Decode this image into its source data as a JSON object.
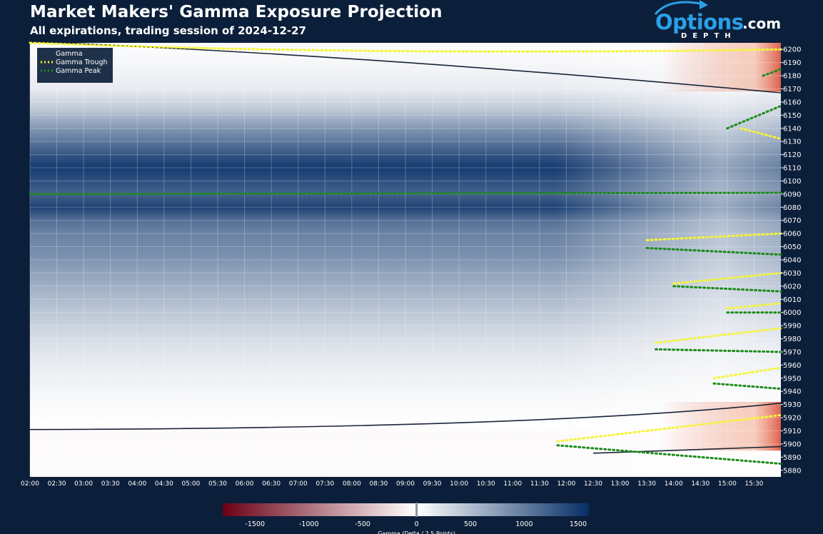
{
  "header": {
    "title": "Market Makers' Gamma Exposure Projection",
    "subtitle": "All expirations, trading session of 2024-12-27"
  },
  "logo": {
    "main": "Options",
    "suffix": ".com",
    "tagline": "DEPTH",
    "icon": "arrow-icon"
  },
  "chart_data": {
    "type": "heatmap",
    "title": "Market Makers' Gamma Exposure Projection",
    "subtitle": "All expirations, trading session of 2024-12-27",
    "xlabel": "",
    "ylabel": "",
    "x_ticks": [
      "02:00",
      "02:30",
      "03:00",
      "03:30",
      "04:00",
      "04:30",
      "05:00",
      "05:30",
      "06:00",
      "06:30",
      "07:00",
      "07:30",
      "08:00",
      "08:30",
      "09:00",
      "09:30",
      "10:00",
      "10:30",
      "11:00",
      "11:30",
      "12:00",
      "12:30",
      "13:00",
      "13:30",
      "14:00",
      "14:30",
      "15:00",
      "15:30"
    ],
    "y_ticks": [
      6200,
      6190,
      6180,
      6170,
      6160,
      6150,
      6140,
      6130,
      6120,
      6110,
      6100,
      6090,
      6080,
      6070,
      6060,
      6050,
      6040,
      6030,
      6020,
      6010,
      6000,
      5990,
      5980,
      5970,
      5960,
      5950,
      5940,
      5930,
      5920,
      5910,
      5900,
      5890,
      5880
    ],
    "xlim": [
      "02:00",
      "16:00"
    ],
    "ylim": [
      5875,
      6205
    ],
    "grid": true,
    "legend": {
      "position": "top-left",
      "items": [
        {
          "name": "Gamma",
          "style": "gradient-line"
        },
        {
          "name": "Gamma Trough",
          "style": "dotted",
          "color": "#f5f535"
        },
        {
          "name": "Gamma Peak",
          "style": "dotted",
          "color": "#1a8a1a"
        }
      ]
    },
    "colorbar": {
      "label": "Gamma (Delta / 2.5 Points)",
      "ticks": [
        -1500,
        -1000,
        -500,
        0,
        500,
        1000,
        1500
      ],
      "range": [
        -1800,
        1600
      ],
      "negative_color": "#6b0015",
      "zero_color": "#ffffff",
      "positive_color": "#062e66"
    },
    "gamma_profile_open": [
      {
        "level": 6205,
        "gamma": 20
      },
      {
        "level": 6190,
        "gamma": 60
      },
      {
        "level": 6170,
        "gamma": 150
      },
      {
        "level": 6155,
        "gamma": 400
      },
      {
        "level": 6140,
        "gamma": 800
      },
      {
        "level": 6120,
        "gamma": 1300
      },
      {
        "level": 6110,
        "gamma": 1500
      },
      {
        "level": 6100,
        "gamma": 1350
      },
      {
        "level": 6090,
        "gamma": 1200
      },
      {
        "level": 6080,
        "gamma": 1450
      },
      {
        "level": 6070,
        "gamma": 1100
      },
      {
        "level": 6060,
        "gamma": 950
      },
      {
        "level": 6050,
        "gamma": 900
      },
      {
        "level": 6040,
        "gamma": 820
      },
      {
        "level": 6030,
        "gamma": 700
      },
      {
        "level": 6020,
        "gamma": 620
      },
      {
        "level": 6010,
        "gamma": 520
      },
      {
        "level": 6000,
        "gamma": 430
      },
      {
        "level": 5990,
        "gamma": 350
      },
      {
        "level": 5980,
        "gamma": 260
      },
      {
        "level": 5970,
        "gamma": 200
      },
      {
        "level": 5960,
        "gamma": 150
      },
      {
        "level": 5950,
        "gamma": 110
      },
      {
        "level": 5940,
        "gamma": 70
      },
      {
        "level": 5930,
        "gamma": 40
      },
      {
        "level": 5915,
        "gamma": 5
      },
      {
        "level": 5905,
        "gamma": -40
      },
      {
        "level": 5890,
        "gamma": -30
      },
      {
        "level": 5875,
        "gamma": -20
      }
    ],
    "zero_gamma_contours": [
      {
        "name": "upper",
        "points": [
          [
            "02:00",
            6206
          ],
          [
            "08:30",
            6195
          ],
          [
            "16:00",
            6167
          ]
        ]
      },
      {
        "name": "lower",
        "points": [
          [
            "02:00",
            5911
          ],
          [
            "11:30",
            5912
          ],
          [
            "16:00",
            5931
          ]
        ]
      },
      {
        "name": "lower-inner",
        "points": [
          [
            "12:30",
            5893
          ],
          [
            "16:00",
            5898
          ]
        ]
      }
    ],
    "gamma_trough_series": [
      {
        "name": "Gamma Trough",
        "points": [
          [
            "02:00",
            6205
          ],
          [
            "08:30",
            6195
          ],
          [
            "16:00",
            6200
          ]
        ]
      },
      {
        "name": "Gamma Trough",
        "points": [
          [
            "15:15",
            6140
          ],
          [
            "16:00",
            6132
          ]
        ]
      },
      {
        "name": "Gamma Trough",
        "points": [
          [
            "13:30",
            6055
          ],
          [
            "16:00",
            6060
          ]
        ]
      },
      {
        "name": "Gamma Trough",
        "points": [
          [
            "14:00",
            6022
          ],
          [
            "16:00",
            6030
          ]
        ]
      },
      {
        "name": "Gamma Trough",
        "points": [
          [
            "15:00",
            6003
          ],
          [
            "16:00",
            6007
          ]
        ]
      },
      {
        "name": "Gamma Trough",
        "points": [
          [
            "13:40",
            5977
          ],
          [
            "16:00",
            5988
          ]
        ]
      },
      {
        "name": "Gamma Trough",
        "points": [
          [
            "14:45",
            5950
          ],
          [
            "16:00",
            5958
          ]
        ]
      },
      {
        "name": "Gamma Trough",
        "points": [
          [
            "11:50",
            5902
          ],
          [
            "16:00",
            5922
          ]
        ]
      }
    ],
    "gamma_peak_series": [
      {
        "name": "Gamma Peak",
        "points": [
          [
            "02:00",
            6090
          ],
          [
            "16:00",
            6091
          ]
        ]
      },
      {
        "name": "Gamma Peak",
        "points": [
          [
            "15:40",
            6180
          ],
          [
            "16:00",
            6185
          ]
        ]
      },
      {
        "name": "Gamma Peak",
        "points": [
          [
            "15:00",
            6140
          ],
          [
            "16:00",
            6157
          ]
        ]
      },
      {
        "name": "Gamma Peak",
        "points": [
          [
            "13:30",
            6049
          ],
          [
            "16:00",
            6044
          ]
        ]
      },
      {
        "name": "Gamma Peak",
        "points": [
          [
            "14:00",
            6020
          ],
          [
            "16:00",
            6016
          ]
        ]
      },
      {
        "name": "Gamma Peak",
        "points": [
          [
            "15:00",
            6000
          ],
          [
            "16:00",
            6000
          ]
        ]
      },
      {
        "name": "Gamma Peak",
        "points": [
          [
            "13:40",
            5972
          ],
          [
            "16:00",
            5970
          ]
        ]
      },
      {
        "name": "Gamma Peak",
        "points": [
          [
            "14:45",
            5946
          ],
          [
            "16:00",
            5942
          ]
        ]
      },
      {
        "name": "Gamma Peak",
        "points": [
          [
            "11:50",
            5899
          ],
          [
            "16:00",
            5885
          ]
        ]
      }
    ]
  }
}
